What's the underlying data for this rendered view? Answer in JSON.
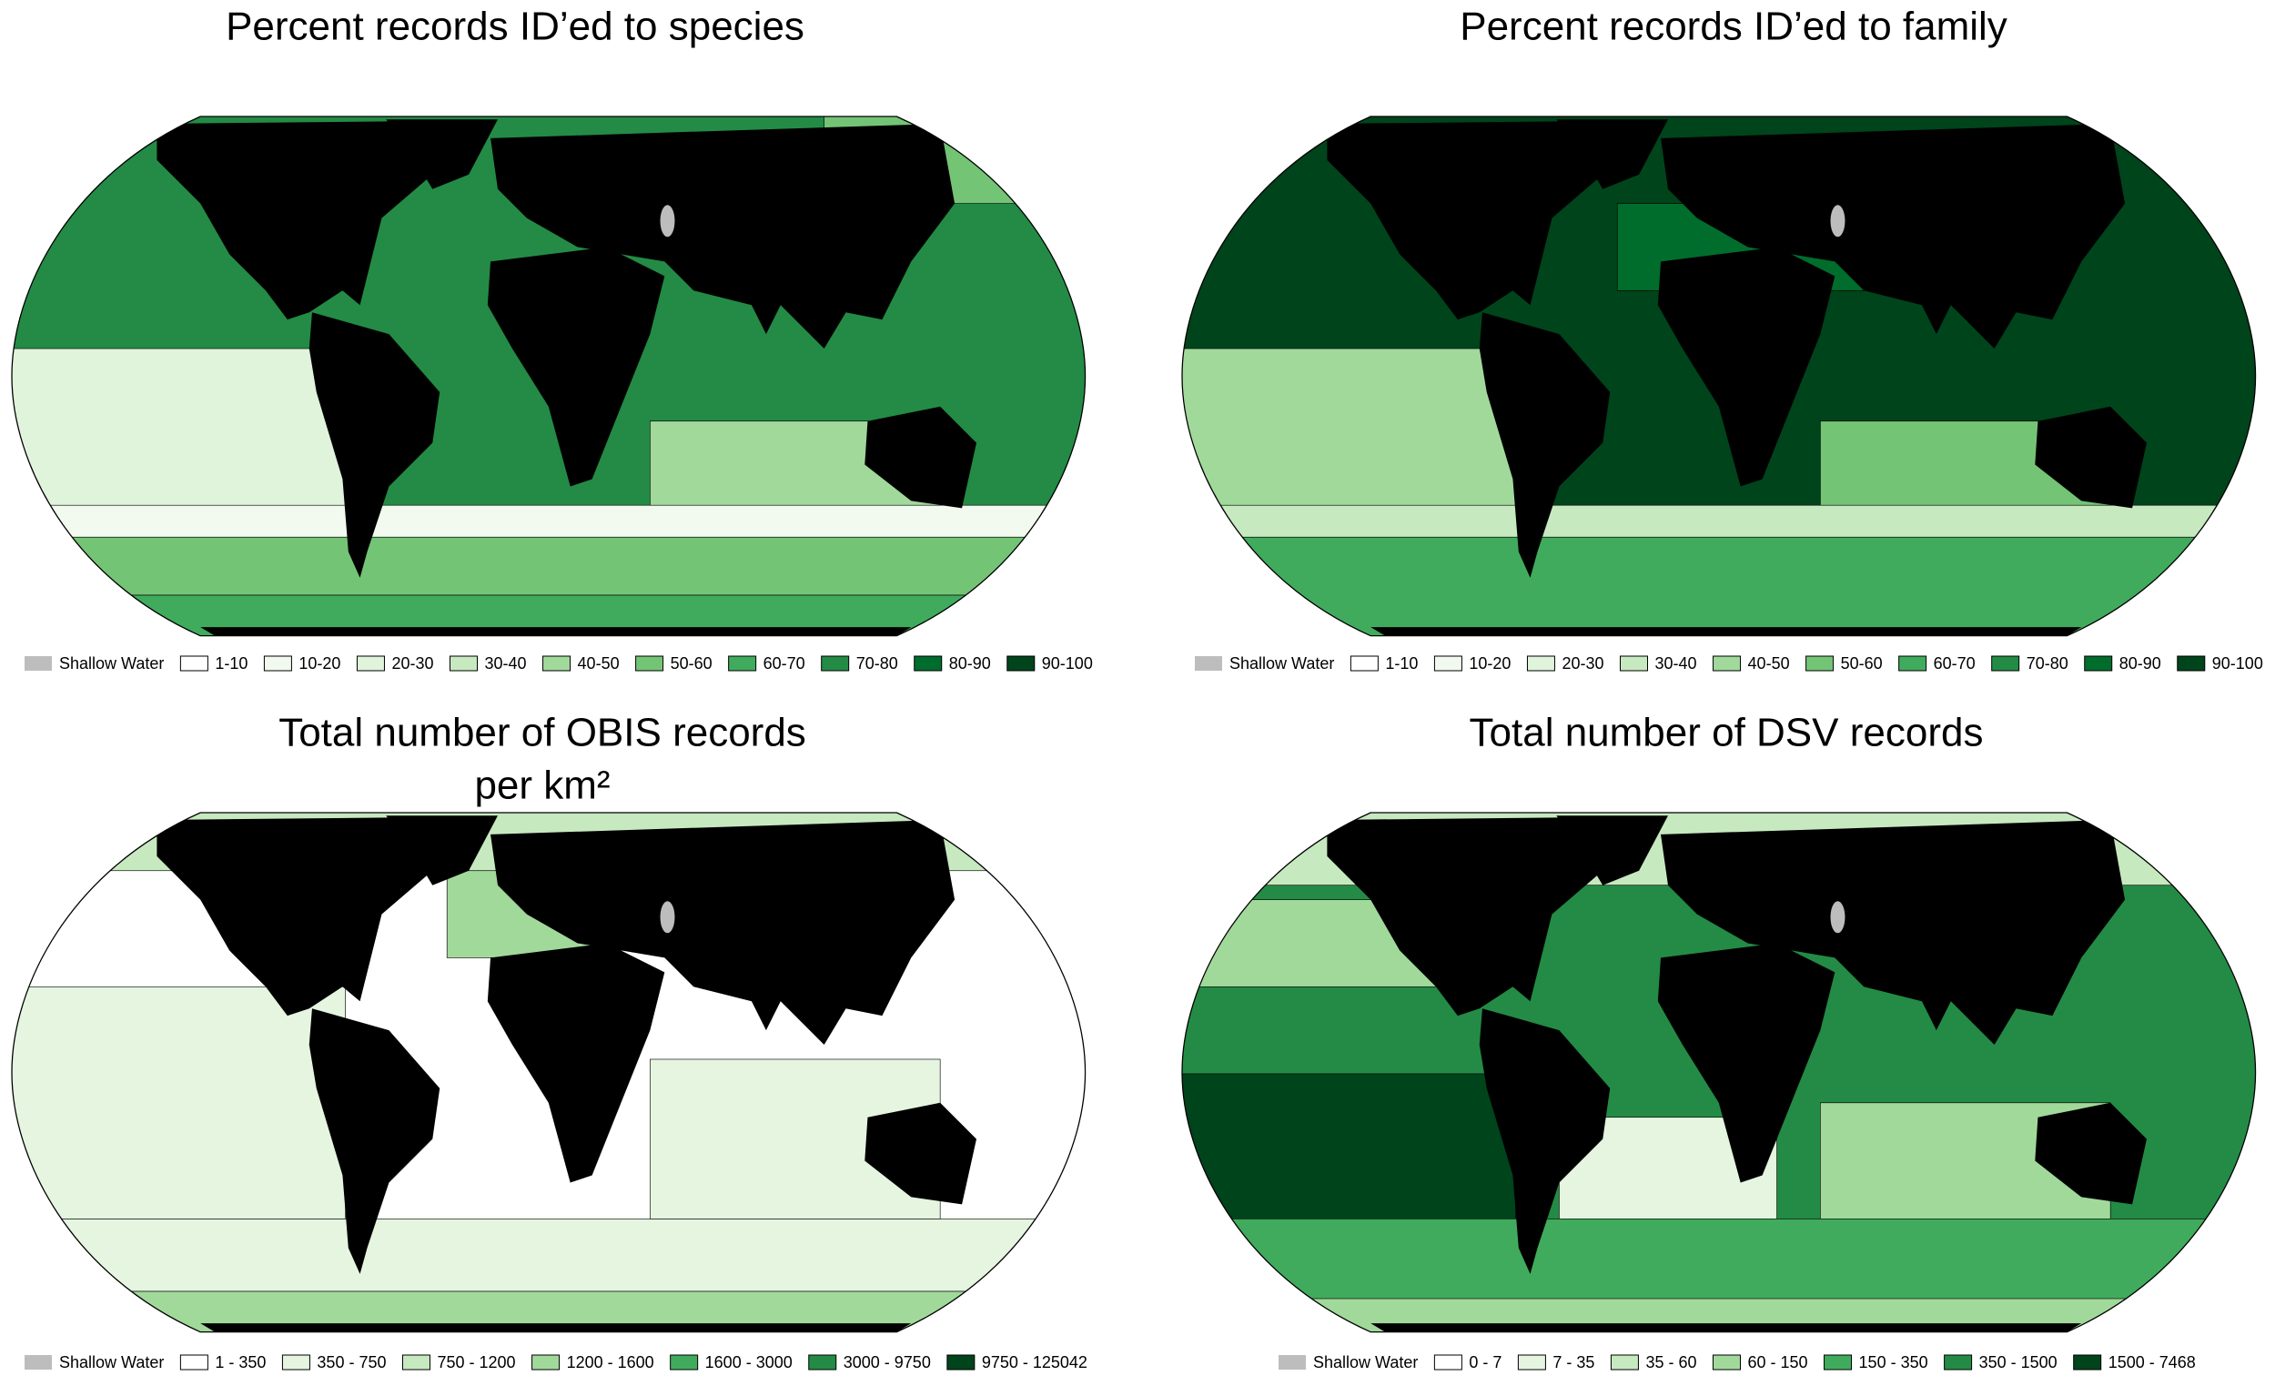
{
  "panels": [
    {
      "title": [
        "Percent records ID’ed to species"
      ],
      "legend": [
        {
          "label": "Shallow Water",
          "color": "#bdbdbd"
        },
        {
          "label": "1-10",
          "color": "#ffffff"
        },
        {
          "label": "10-20",
          "color": "#f2faf0"
        },
        {
          "label": "20-30",
          "color": "#e0f3db"
        },
        {
          "label": "30-40",
          "color": "#c7e9c0"
        },
        {
          "label": "40-50",
          "color": "#a1d99b"
        },
        {
          "label": "50-60",
          "color": "#74c476"
        },
        {
          "label": "60-70",
          "color": "#41ab5d"
        },
        {
          "label": "70-80",
          "color": "#238b45"
        },
        {
          "label": "80-90",
          "color": "#006d2c"
        },
        {
          "label": "90-100",
          "color": "#00441b"
        }
      ]
    },
    {
      "title": [
        "Percent records ID’ed to family"
      ],
      "legend": [
        {
          "label": "Shallow Water",
          "color": "#bdbdbd"
        },
        {
          "label": "1-10",
          "color": "#ffffff"
        },
        {
          "label": "10-20",
          "color": "#f2faf0"
        },
        {
          "label": "20-30",
          "color": "#e0f3db"
        },
        {
          "label": "30-40",
          "color": "#c7e9c0"
        },
        {
          "label": "40-50",
          "color": "#a1d99b"
        },
        {
          "label": "50-60",
          "color": "#74c476"
        },
        {
          "label": "60-70",
          "color": "#41ab5d"
        },
        {
          "label": "70-80",
          "color": "#238b45"
        },
        {
          "label": "80-90",
          "color": "#006d2c"
        },
        {
          "label": "90-100",
          "color": "#00441b"
        }
      ]
    },
    {
      "title": [
        "Total number of OBIS records",
        "per km²"
      ],
      "legend": [
        {
          "label": "Shallow Water",
          "color": "#bdbdbd"
        },
        {
          "label": "1 - 350",
          "color": "#ffffff"
        },
        {
          "label": "350 - 750",
          "color": "#e5f5e0"
        },
        {
          "label": "750 - 1200",
          "color": "#c7e9c0"
        },
        {
          "label": "1200 - 1600",
          "color": "#a1d99b"
        },
        {
          "label": "1600 - 3000",
          "color": "#41ab5d"
        },
        {
          "label": "3000 - 9750",
          "color": "#238b45"
        },
        {
          "label": "9750 - 125042",
          "color": "#00441b"
        }
      ]
    },
    {
      "title": [
        "Total number of DSV records"
      ],
      "legend": [
        {
          "label": "Shallow Water",
          "color": "#bdbdbd"
        },
        {
          "label": "0 - 7",
          "color": "#ffffff"
        },
        {
          "label": "7 - 35",
          "color": "#e5f5e0"
        },
        {
          "label": "35 - 60",
          "color": "#c7e9c0"
        },
        {
          "label": "60 - 150",
          "color": "#a1d99b"
        },
        {
          "label": "150 - 350",
          "color": "#41ab5d"
        },
        {
          "label": "350 - 1500",
          "color": "#238b45"
        },
        {
          "label": "1500 - 7468",
          "color": "#00441b"
        }
      ]
    }
  ]
}
